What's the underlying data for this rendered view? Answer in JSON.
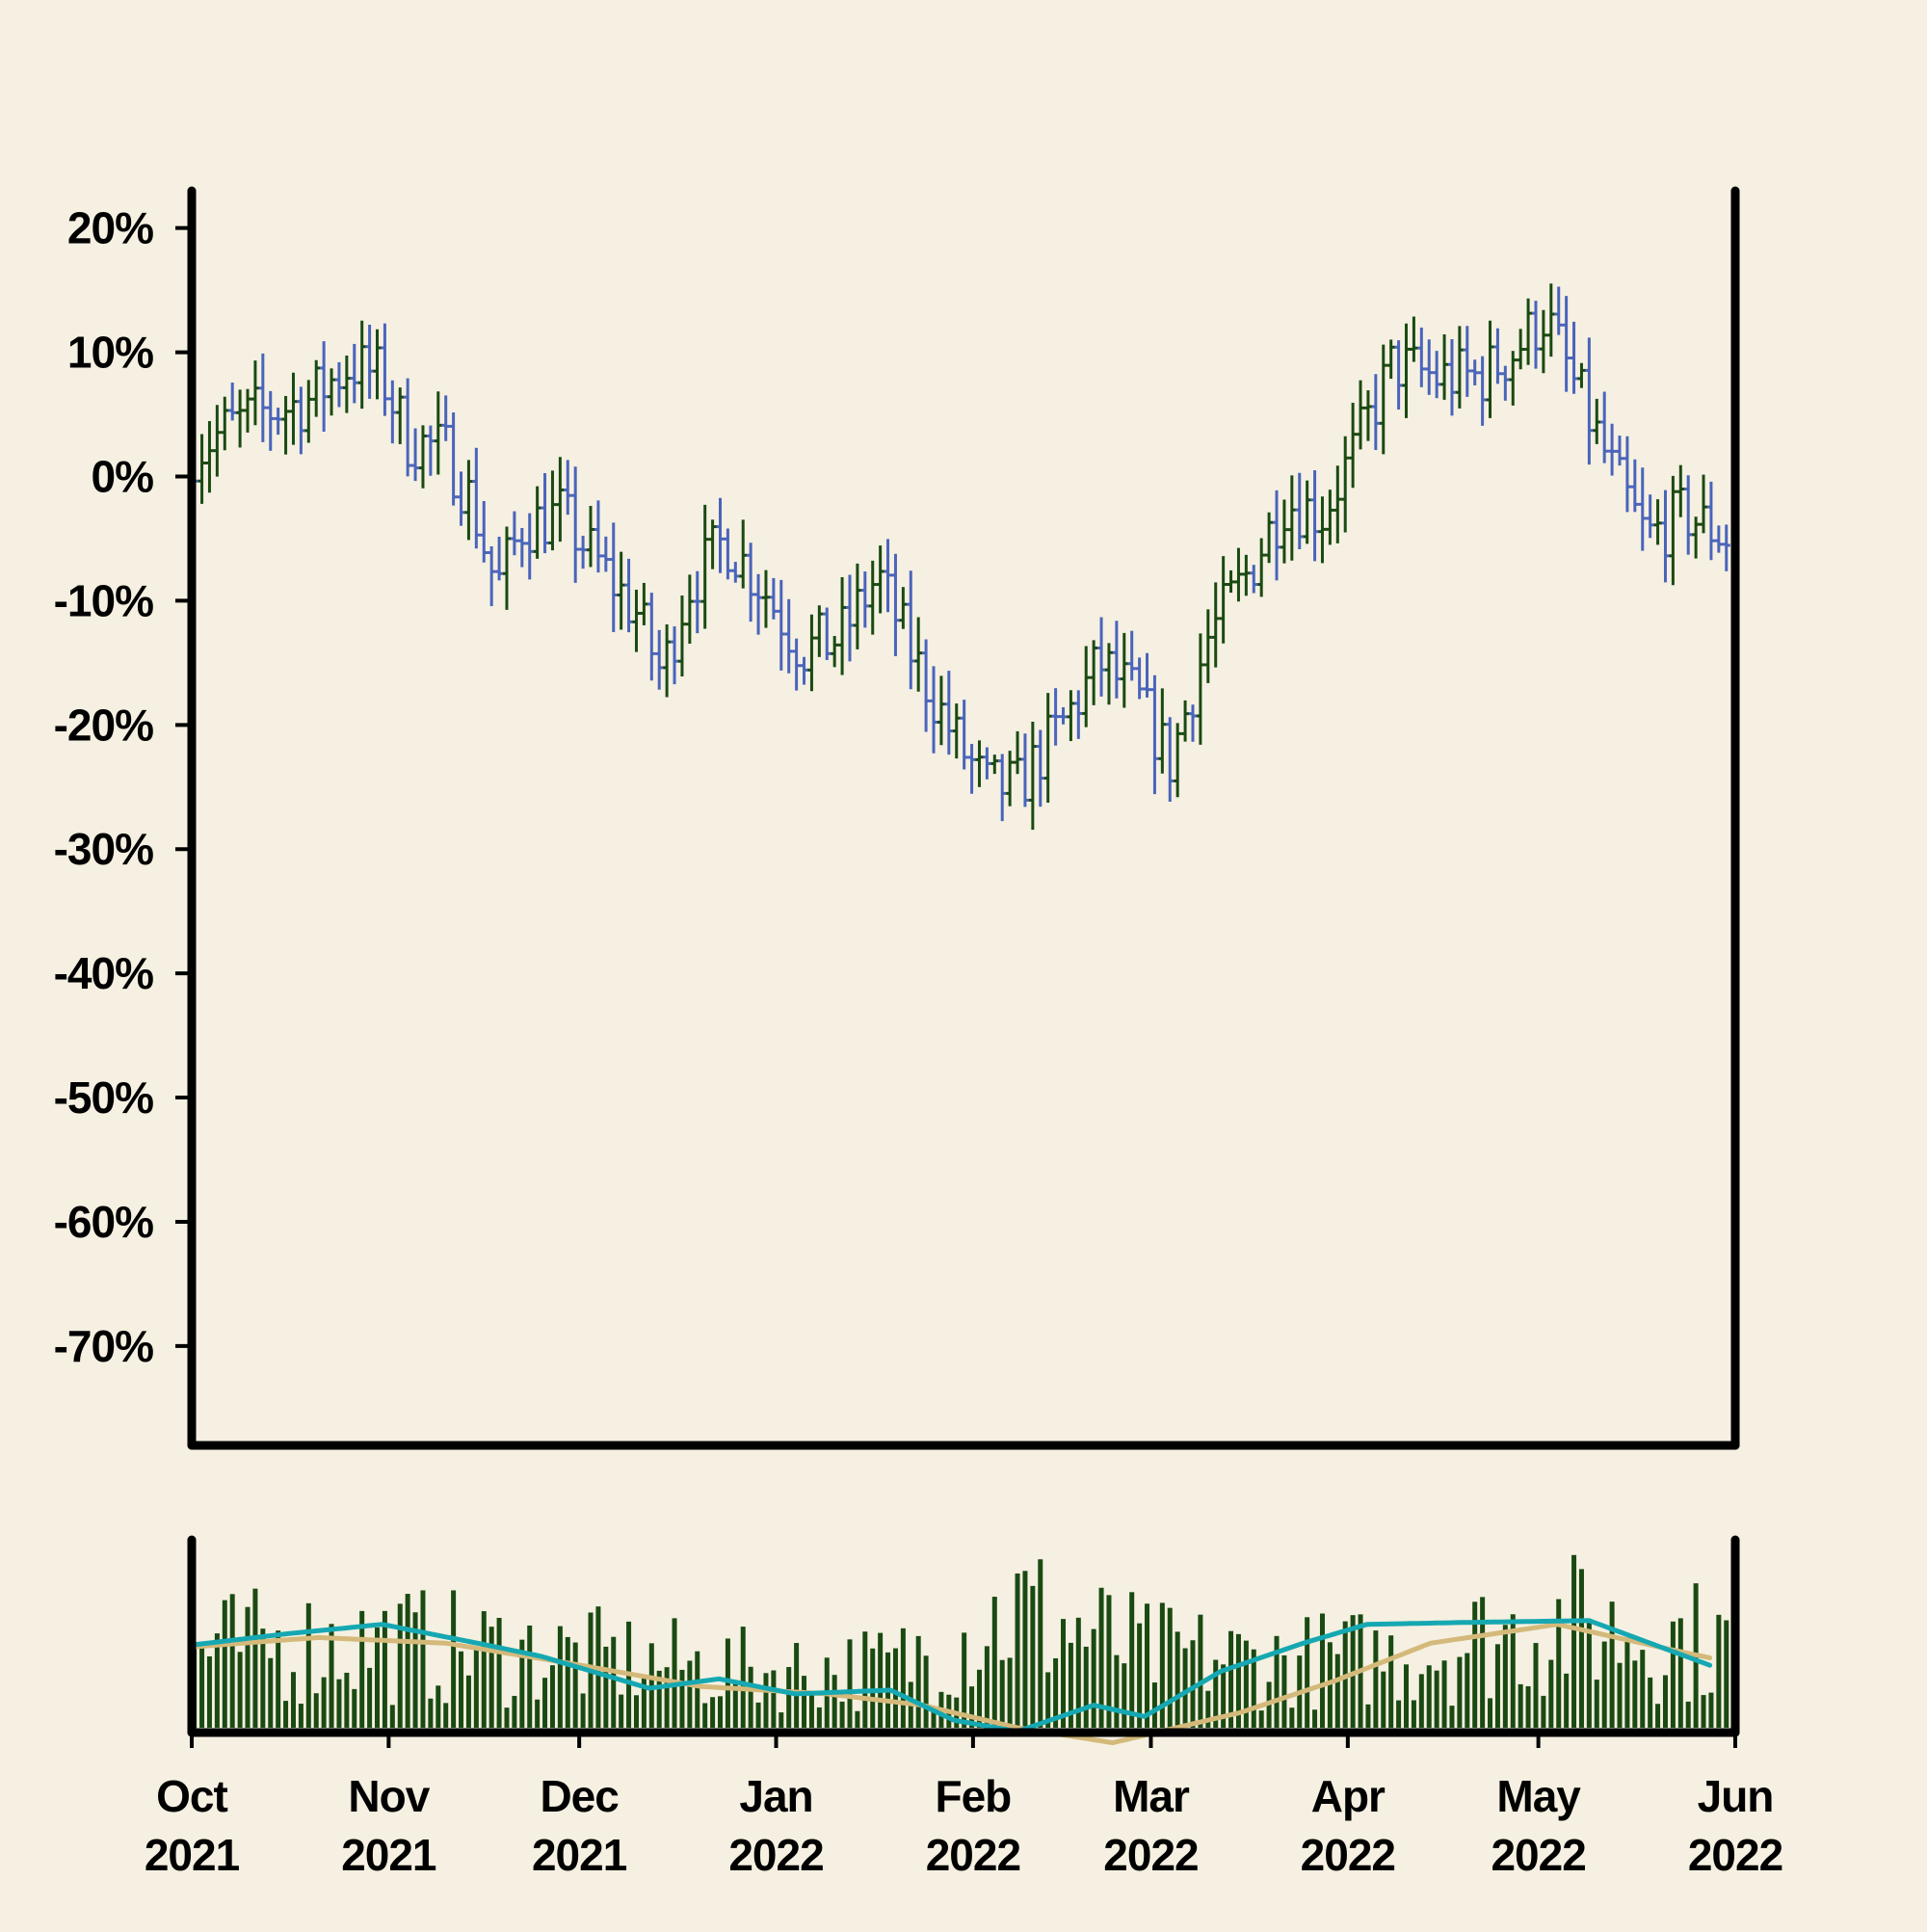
{
  "chart_data": [
    {
      "type": "ohlc",
      "panel": "price",
      "ylabel": "",
      "ylim": [
        -78,
        23
      ],
      "yticks": [
        20,
        10,
        0,
        -10,
        -20,
        -30,
        -40,
        -50,
        -60,
        -70
      ],
      "ytick_labels": [
        "20%",
        "10%",
        "0%",
        "-10%",
        "-20%",
        "-30%",
        "-40%",
        "-50%",
        "-60%",
        "-70%"
      ],
      "xlim": [
        "2021-10-01",
        "2022-06-01"
      ],
      "grid": false,
      "colors": {
        "up": "#1a4a12",
        "down": "#4a64bb"
      },
      "bar_width_days": 0.65,
      "bar_interval_days": 1.2,
      "close_keypoints": [
        [
          0,
          2
        ],
        [
          6,
          4
        ],
        [
          10,
          5
        ],
        [
          18,
          6
        ],
        [
          25,
          9
        ],
        [
          30,
          8
        ],
        [
          34,
          3
        ],
        [
          40,
          2
        ],
        [
          44,
          -2
        ],
        [
          48,
          -9
        ],
        [
          52,
          -4
        ],
        [
          58,
          -3
        ],
        [
          64,
          -7
        ],
        [
          70,
          -11
        ],
        [
          74,
          -16
        ],
        [
          78,
          -9
        ],
        [
          84,
          -5
        ],
        [
          90,
          -9
        ],
        [
          96,
          -14
        ],
        [
          102,
          -13
        ],
        [
          108,
          -8
        ],
        [
          114,
          -15
        ],
        [
          120,
          -21
        ],
        [
          125,
          -25
        ],
        [
          130,
          -25
        ],
        [
          137,
          -20
        ],
        [
          143,
          -15
        ],
        [
          149,
          -18
        ],
        [
          154,
          -23
        ],
        [
          160,
          -13
        ],
        [
          166,
          -8
        ],
        [
          172,
          -2
        ],
        [
          178,
          -3
        ],
        [
          183,
          2
        ],
        [
          189,
          9
        ],
        [
          196,
          8
        ],
        [
          203,
          8
        ],
        [
          208,
          10
        ],
        [
          213,
          13
        ],
        [
          218,
          7
        ],
        [
          224,
          0
        ],
        [
          229,
          -5
        ],
        [
          235,
          -3
        ],
        [
          242,
          -5
        ],
        [
          248,
          -11
        ],
        [
          254,
          -12
        ],
        [
          258,
          -6
        ],
        [
          264,
          -10
        ],
        [
          271,
          -14
        ]
      ],
      "ohlc": [
        {
          "x": "2021-10-01",
          "o": 3.0,
          "h": 4.1,
          "l": 0.2,
          "c": 1.4
        },
        {
          "x": "2021-10-04",
          "o": 1.4,
          "h": 2.6,
          "l": -1.8,
          "c": -0.5
        },
        {
          "x": "2021-10-07",
          "o": 0.1,
          "h": 4.6,
          "l": -0.1,
          "c": 4.0
        },
        {
          "x": "2021-10-09",
          "o": 4.0,
          "h": 8.2,
          "l": 3.5,
          "c": 6.9
        },
        {
          "x": "2021-10-13",
          "o": 6.9,
          "h": 8.0,
          "l": 2.6,
          "c": 4.3
        },
        {
          "x": "2021-10-17",
          "o": 4.3,
          "h": 9.5,
          "l": 2.9,
          "c": 7.7
        },
        {
          "x": "2021-10-20",
          "o": 7.7,
          "h": 8.4,
          "l": 0.3,
          "c": 2.4
        },
        {
          "x": "2021-10-24",
          "o": 2.4,
          "h": 10.1,
          "l": 2.0,
          "c": 7.8
        },
        {
          "x": "2021-10-28",
          "o": 7.8,
          "h": 10.9,
          "l": 5.8,
          "c": 8.2
        },
        {
          "x": "2021-10-31",
          "o": 8.2,
          "h": 11.5,
          "l": 6.5,
          "c": 10.3
        },
        {
          "x": "2021-11-03",
          "o": 10.3,
          "h": 10.6,
          "l": 3.5,
          "c": 4.8
        },
        {
          "x": "2021-11-07",
          "o": 4.8,
          "h": 6.9,
          "l": 1.3,
          "c": 2.2
        },
        {
          "x": "2021-11-11",
          "o": 2.2,
          "h": 6.6,
          "l": 0.2,
          "c": 5.4
        },
        {
          "x": "2021-11-15",
          "o": 5.4,
          "h": 5.8,
          "l": 0.5,
          "c": 1.6
        },
        {
          "x": "2021-11-19",
          "o": 1.6,
          "h": 2.4,
          "l": -4.0,
          "c": -3.2
        },
        {
          "x": "2021-11-22",
          "o": -3.2,
          "h": -2.0,
          "l": -9.6,
          "c": -8.4
        },
        {
          "x": "2021-11-25",
          "o": -8.4,
          "h": -2.1,
          "l": -9.0,
          "c": -3.6
        },
        {
          "x": "2021-11-29",
          "o": -3.6,
          "h": -1.0,
          "l": -5.3,
          "c": -2.7
        },
        {
          "x": "2021-12-03",
          "o": -2.7,
          "h": 0.0,
          "l": -5.4,
          "c": -4.1
        },
        {
          "x": "2021-12-07",
          "o": -4.1,
          "h": -3.2,
          "l": -8.9,
          "c": -7.2
        },
        {
          "x": "2021-12-11",
          "o": -7.2,
          "h": -4.0,
          "l": -10.9,
          "c": -6.2
        },
        {
          "x": "2021-12-15",
          "o": -6.2,
          "h": -6.0,
          "l": -16.3,
          "c": -15.8
        },
        {
          "x": "2021-12-18",
          "o": -15.8,
          "h": -9.5,
          "l": -17.6,
          "c": -10.2
        },
        {
          "x": "2021-12-22",
          "o": -10.2,
          "h": -5.0,
          "l": -13.0,
          "c": -6.1
        },
        {
          "x": "2021-12-26",
          "o": -6.1,
          "h": -3.2,
          "l": -10.0,
          "c": -7.7
        },
        {
          "x": "2021-12-30",
          "o": -7.7,
          "h": -4.8,
          "l": -10.5,
          "c": -9.0
        },
        {
          "x": "2022-01-03",
          "o": -9.0,
          "h": -7.5,
          "l": -13.6,
          "c": -12.6
        },
        {
          "x": "2022-01-07",
          "o": -12.6,
          "h": -10.4,
          "l": -16.0,
          "c": -13.3
        },
        {
          "x": "2022-01-11",
          "o": -13.3,
          "h": -7.0,
          "l": -14.8,
          "c": -8.6
        },
        {
          "x": "2022-01-15",
          "o": -8.6,
          "h": -7.1,
          "l": -12.5,
          "c": -11.2
        },
        {
          "x": "2022-01-19",
          "o": -11.2,
          "h": -10.6,
          "l": -19.4,
          "c": -18.9
        },
        {
          "x": "2022-01-22",
          "o": -18.9,
          "h": -17.7,
          "l": -26.4,
          "c": -24.0
        },
        {
          "x": "2022-01-26",
          "o": -24.0,
          "h": -18.4,
          "l": -27.2,
          "c": -20.4
        },
        {
          "x": "2022-01-29",
          "o": -20.4,
          "h": -18.6,
          "l": -26.0,
          "c": -24.7
        },
        {
          "x": "2022-02-02",
          "o": -24.7,
          "h": -20.0,
          "l": -29.2,
          "c": -26.4
        },
        {
          "x": "2022-02-05",
          "o": -26.4,
          "h": -19.2,
          "l": -27.4,
          "c": -21.1
        },
        {
          "x": "2022-02-09",
          "o": -21.1,
          "h": -15.2,
          "l": -22.2,
          "c": -17.0
        },
        {
          "x": "2022-02-13",
          "o": -17.0,
          "h": -11.3,
          "l": -19.1,
          "c": -14.8
        },
        {
          "x": "2022-02-17",
          "o": -14.8,
          "h": -14.2,
          "l": -20.8,
          "c": -19.8
        },
        {
          "x": "2022-02-21",
          "o": -19.8,
          "h": -17.8,
          "l": -25.9,
          "c": -21.6
        },
        {
          "x": "2022-02-24",
          "o": -21.6,
          "h": -14.5,
          "l": -22.9,
          "c": -15.9
        },
        {
          "x": "2022-02-28",
          "o": -15.9,
          "h": -10.1,
          "l": -17.4,
          "c": -12.0
        },
        {
          "x": "2022-03-04",
          "o": -12.0,
          "h": -7.7,
          "l": -13.8,
          "c": -8.9
        },
        {
          "x": "2022-03-07",
          "o": -8.9,
          "h": -1.7,
          "l": -10.7,
          "c": -4.4
        },
        {
          "x": "2022-03-11",
          "o": -4.4,
          "h": 1.6,
          "l": -5.2,
          "c": -1.2
        },
        {
          "x": "2022-03-15",
          "o": -1.2,
          "h": -0.3,
          "l": -7.3,
          "c": -4.2
        },
        {
          "x": "2022-03-18",
          "o": -4.2,
          "h": 2.9,
          "l": -5.8,
          "c": 2.0
        },
        {
          "x": "2022-03-22",
          "o": 2.0,
          "h": 9.3,
          "l": 1.5,
          "c": 7.9
        },
        {
          "x": "2022-03-26",
          "o": 7.9,
          "h": 11.5,
          "l": 6.1,
          "c": 9.4
        },
        {
          "x": "2022-03-30",
          "o": 9.4,
          "h": 11.3,
          "l": 5.6,
          "c": 8.1
        },
        {
          "x": "2022-04-03",
          "o": 8.1,
          "h": 11.6,
          "l": 5.0,
          "c": 7.0
        },
        {
          "x": "2022-04-07",
          "o": 7.0,
          "h": 11.4,
          "l": 5.5,
          "c": 9.5
        },
        {
          "x": "2022-04-11",
          "o": 9.5,
          "h": 12.0,
          "l": 6.3,
          "c": 8.5
        },
        {
          "x": "2022-04-15",
          "o": 8.5,
          "h": 14.2,
          "l": 7.6,
          "c": 12.6
        },
        {
          "x": "2022-04-19",
          "o": 12.6,
          "h": 13.3,
          "l": 2.3,
          "c": 4.4
        },
        {
          "x": "2022-04-22",
          "o": 4.4,
          "h": 5.0,
          "l": -2.0,
          "c": -0.5
        },
        {
          "x": "2022-04-26",
          "o": -0.5,
          "h": 3.0,
          "l": -1.6,
          "c": 0.5
        },
        {
          "x": "2022-04-29",
          "o": 0.5,
          "h": 1.3,
          "l": -5.9,
          "c": -4.8
        },
        {
          "x": "2022-05-03",
          "o": -4.8,
          "h": -3.8,
          "l": -8.3,
          "c": -6.3
        },
        {
          "x": "2022-05-07",
          "o": -6.3,
          "h": -1.5,
          "l": -7.1,
          "c": -2.3
        },
        {
          "x": "2022-05-11",
          "o": -2.3,
          "h": -1.1,
          "l": -5.3,
          "c": -3.8
        },
        {
          "x": "2022-05-15",
          "o": -3.8,
          "h": -1.9,
          "l": -8.2,
          "c": -6.6
        },
        {
          "x": "2022-05-19",
          "o": -6.6,
          "h": -6.3,
          "l": -11.9,
          "c": -10.7
        },
        {
          "x": "2022-05-23",
          "o": -10.7,
          "h": -7.3,
          "l": -13.2,
          "c": -11.8
        },
        {
          "x": "2022-05-27",
          "o": -11.8,
          "h": -3.6,
          "l": -12.8,
          "c": -8.3
        },
        {
          "x": "2022-05-31",
          "o": -8.3,
          "h": -7.4,
          "l": -15.2,
          "c": -13.6
        }
      ],
      "xticks": [
        "2021-10-01",
        "2021-11-01",
        "2021-12-01",
        "2022-01-01",
        "2022-02-01",
        "2022-03-01",
        "2022-04-01",
        "2022-05-01",
        "2022-06-01"
      ],
      "xtick_labels": [
        [
          "Oct",
          "2021"
        ],
        [
          "Nov",
          "2021"
        ],
        [
          "Dec",
          "2021"
        ],
        [
          "Jan",
          "2022"
        ],
        [
          "Feb",
          "2022"
        ],
        [
          "Mar",
          "2022"
        ],
        [
          "Apr",
          "2022"
        ],
        [
          "May",
          "2022"
        ],
        [
          "Jun",
          "2022"
        ]
      ]
    },
    {
      "type": "bar",
      "panel": "volume",
      "xlim": [
        "2021-10-01",
        "2022-06-01"
      ],
      "ylabel": "",
      "yticks": [],
      "grid": false,
      "colors": {
        "bars": "#1a4a12",
        "ma_fast": "#16a8b2",
        "ma_slow": "#d4b97a"
      },
      "volume_keypoints": [
        [
          0,
          0.42
        ],
        [
          30,
          0.45
        ],
        [
          60,
          0.38
        ],
        [
          90,
          0.3
        ],
        [
          110,
          0.32
        ],
        [
          130,
          0.62
        ],
        [
          150,
          0.4
        ],
        [
          170,
          0.35
        ],
        [
          190,
          0.38
        ],
        [
          215,
          0.55
        ],
        [
          240,
          0.45
        ],
        [
          271,
          0.42
        ]
      ],
      "ma_fast_keypoints": [
        [
          0,
          0.44
        ],
        [
          15,
          0.5
        ],
        [
          30,
          0.55
        ],
        [
          45,
          0.45
        ],
        [
          55,
          0.38
        ],
        [
          72,
          0.21
        ],
        [
          83,
          0.26
        ],
        [
          95,
          0.18
        ],
        [
          110,
          0.2
        ],
        [
          120,
          0.04
        ],
        [
          130,
          -0.02
        ],
        [
          142,
          0.12
        ],
        [
          150,
          0.06
        ],
        [
          162,
          0.3
        ],
        [
          175,
          0.45
        ],
        [
          185,
          0.55
        ],
        [
          200,
          0.56
        ],
        [
          220,
          0.57
        ],
        [
          240,
          0.32
        ],
        [
          256,
          0.23
        ],
        [
          271,
          0.22
        ]
      ],
      "ma_slow_keypoints": [
        [
          0,
          0.43
        ],
        [
          20,
          0.48
        ],
        [
          40,
          0.45
        ],
        [
          60,
          0.34
        ],
        [
          80,
          0.22
        ],
        [
          100,
          0.18
        ],
        [
          115,
          0.12
        ],
        [
          130,
          0.0
        ],
        [
          145,
          -0.08
        ],
        [
          165,
          0.08
        ],
        [
          180,
          0.25
        ],
        [
          195,
          0.45
        ],
        [
          215,
          0.55
        ],
        [
          235,
          0.4
        ],
        [
          255,
          0.26
        ],
        [
          271,
          0.2
        ]
      ]
    }
  ]
}
